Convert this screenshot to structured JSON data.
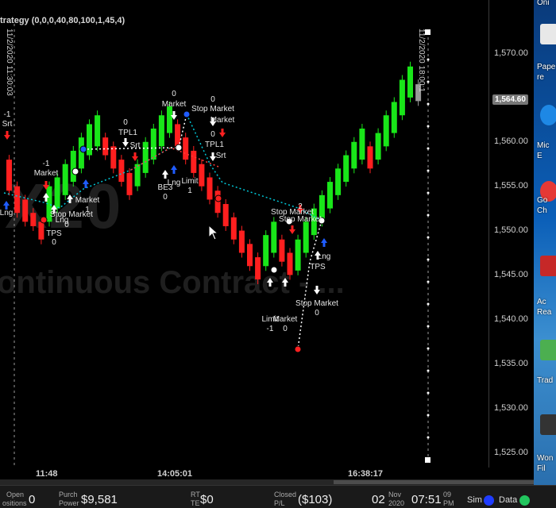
{
  "strategy_title": "trategy (0,0,0,40,80,100,1,45,4)",
  "watermark": {
    "symbol": "X20",
    "subtitle": "ontinuous Contract - ..."
  },
  "price_axis": {
    "labels": [
      "1,570.00",
      "1,565.00",
      "1,560.00",
      "1,555.00",
      "1,550.00",
      "1,545.00",
      "1,540.00",
      "1,535.00",
      "1,530.00",
      "1,525.00"
    ],
    "current_price": "1,564.60"
  },
  "time_axis": {
    "labels": [
      "11:48",
      "14:05:01",
      "16:38:17"
    ]
  },
  "date_markers": [
    "11/2/2020 11:30:03",
    "11/2/2020 18:00:1"
  ],
  "chart_data": {
    "type": "candlestick",
    "ylim": [
      1524,
      1574
    ],
    "bars": [
      {
        "o": 1558,
        "c": 1554.5
      },
      {
        "o": 1555,
        "c": 1552
      },
      {
        "o": 1553.5,
        "c": 1551
      },
      {
        "o": 1552,
        "c": 1550.5
      },
      {
        "o": 1551,
        "c": 1549
      },
      {
        "o": 1551,
        "c": 1555
      },
      {
        "o": 1552.5,
        "c": 1556
      },
      {
        "o": 1554,
        "c": 1557.5
      },
      {
        "o": 1555.5,
        "c": 1559
      },
      {
        "o": 1557,
        "c": 1560.5
      },
      {
        "o": 1558.5,
        "c": 1562
      },
      {
        "o": 1559.5,
        "c": 1563
      },
      {
        "o": 1560.5,
        "c": 1558.5
      },
      {
        "o": 1559.5,
        "c": 1557
      },
      {
        "o": 1558,
        "c": 1555.5
      },
      {
        "o": 1556.5,
        "c": 1554
      },
      {
        "o": 1555,
        "c": 1557.5
      },
      {
        "o": 1556.5,
        "c": 1560
      },
      {
        "o": 1558,
        "c": 1561.5
      },
      {
        "o": 1559.5,
        "c": 1563
      },
      {
        "o": 1561,
        "c": 1564
      },
      {
        "o": 1562,
        "c": 1559.5
      },
      {
        "o": 1560.5,
        "c": 1558
      },
      {
        "o": 1559,
        "c": 1556.5
      },
      {
        "o": 1557.5,
        "c": 1555
      },
      {
        "o": 1556,
        "c": 1553.5
      },
      {
        "o": 1554.5,
        "c": 1552
      },
      {
        "o": 1553,
        "c": 1550.5
      },
      {
        "o": 1551.5,
        "c": 1549
      },
      {
        "o": 1550,
        "c": 1547.5
      },
      {
        "o": 1548.5,
        "c": 1546
      },
      {
        "o": 1547,
        "c": 1544.5
      },
      {
        "o": 1546,
        "c": 1549.5
      },
      {
        "o": 1547.5,
        "c": 1551
      },
      {
        "o": 1549,
        "c": 1546.5
      },
      {
        "o": 1547.5,
        "c": 1545
      },
      {
        "o": 1545.5,
        "c": 1549
      },
      {
        "o": 1547.5,
        "c": 1551
      },
      {
        "o": 1549.5,
        "c": 1552.5
      },
      {
        "o": 1551,
        "c": 1554
      },
      {
        "o": 1552.5,
        "c": 1555.5
      },
      {
        "o": 1554,
        "c": 1557
      },
      {
        "o": 1555.5,
        "c": 1558.5
      },
      {
        "o": 1557,
        "c": 1560
      },
      {
        "o": 1558,
        "c": 1561.5
      },
      {
        "o": 1559.5,
        "c": 1557
      },
      {
        "o": 1558,
        "c": 1561
      },
      {
        "o": 1559.5,
        "c": 1563
      },
      {
        "o": 1561,
        "c": 1564.5
      },
      {
        "o": 1563,
        "c": 1567
      },
      {
        "o": 1565,
        "c": 1568.5
      },
      {
        "o": 1566.5,
        "c": 1564.6
      }
    ]
  },
  "markers": [
    {
      "text": "-1",
      "x": 9,
      "y": 147
    },
    {
      "text": "Srt",
      "x": 9,
      "y": 159
    },
    {
      "text": "-1",
      "x": 58,
      "y": 209
    },
    {
      "text": "Market",
      "x": 58,
      "y": 221
    },
    {
      "text": "Lng",
      "x": 8,
      "y": 271
    },
    {
      "text": "TPS",
      "x": 68,
      "y": 297
    },
    {
      "text": "0",
      "x": 68,
      "y": 308
    },
    {
      "text": "Lng",
      "x": 78,
      "y": 280
    },
    {
      "text": "0",
      "x": 84,
      "y": 286
    },
    {
      "text": "Market",
      "x": 110,
      "y": 255
    },
    {
      "text": "1",
      "x": 110,
      "y": 267
    },
    {
      "text": "Stop Market",
      "x": 90,
      "y": 273
    },
    {
      "text": "0",
      "x": 158,
      "y": 157
    },
    {
      "text": "TPL1",
      "x": 161,
      "y": 170
    },
    {
      "text": "Srt",
      "x": 170,
      "y": 186
    },
    {
      "text": "0",
      "x": 219,
      "y": 121
    },
    {
      "text": "Market",
      "x": 219,
      "y": 134
    },
    {
      "text": "BE3",
      "x": 208,
      "y": 239
    },
    {
      "text": "0",
      "x": 208,
      "y": 251
    },
    {
      "text": "Lng",
      "x": 219,
      "y": 233
    },
    {
      "text": "Limit",
      "x": 239,
      "y": 231
    },
    {
      "text": "1",
      "x": 239,
      "y": 243
    },
    {
      "text": "0",
      "x": 268,
      "y": 128
    },
    {
      "text": "Stop Market",
      "x": 268,
      "y": 140
    },
    {
      "text": "Market",
      "x": 280,
      "y": 154
    },
    {
      "text": "0",
      "x": 268,
      "y": 172
    },
    {
      "text": "TPL1",
      "x": 270,
      "y": 185
    },
    {
      "text": "Srt",
      "x": 278,
      "y": 199
    },
    {
      "text": "2",
      "x": 378,
      "y": 263
    },
    {
      "text": "Stop Market",
      "x": 368,
      "y": 270
    },
    {
      "text": "Stop Market",
      "x": 378,
      "y": 279
    },
    {
      "text": "Lng",
      "x": 408,
      "y": 326
    },
    {
      "text": "TPS",
      "x": 400,
      "y": 339
    },
    {
      "text": "Limit",
      "x": 340,
      "y": 405
    },
    {
      "text": "-1",
      "x": 340,
      "y": 417
    },
    {
      "text": "Market",
      "x": 359,
      "y": 405
    },
    {
      "text": "0",
      "x": 359,
      "y": 417
    },
    {
      "text": "Stop Market",
      "x": 399,
      "y": 385
    },
    {
      "text": "0",
      "x": 399,
      "y": 397
    }
  ],
  "status_bar": {
    "open_positions": {
      "label_top": "Open",
      "label_bottom": "ositions",
      "value": "0"
    },
    "purch_power": {
      "label_top": "Purch",
      "label_bottom": "Power",
      "value": "$9,581"
    },
    "rt_te": {
      "label_top": "RT",
      "label_bottom": "TE",
      "value": "$0"
    },
    "closed_pl": {
      "label_top": "Closed",
      "label_bottom": "P/L",
      "value": "($103)"
    },
    "date": {
      "day": "02",
      "month": "Nov",
      "year": "2020"
    },
    "time": {
      "value": "07:51",
      "ampm_top": "09",
      "ampm_bottom": "PM"
    },
    "sim_label": "Sim",
    "data_label": "Data",
    "colors": {
      "sim": "#1f3cff",
      "data": "#22c55e"
    }
  },
  "desktop": {
    "icons": [
      {
        "name": "paper-icon",
        "label": "Pape"
      },
      {
        "name": "paper-icon-2",
        "label": "re"
      },
      {
        "name": "microsoft-edge-icon",
        "label": "Mic"
      },
      {
        "name": "microsoft-edge-icon-2",
        "label": "E"
      },
      {
        "name": "google-chrome-icon",
        "label": "Go"
      },
      {
        "name": "google-chrome-icon-2",
        "label": "Ch"
      },
      {
        "name": "acrobat-reader-icon",
        "label": "Ac"
      },
      {
        "name": "acrobat-reader-icon-2",
        "label": "Rea"
      },
      {
        "name": "trade-icon",
        "label": "Trad"
      },
      {
        "name": "wondershare-icon",
        "label": "Won"
      },
      {
        "name": "wondershare-icon-2",
        "label": "Fil"
      }
    ],
    "top_text": "Oni"
  }
}
